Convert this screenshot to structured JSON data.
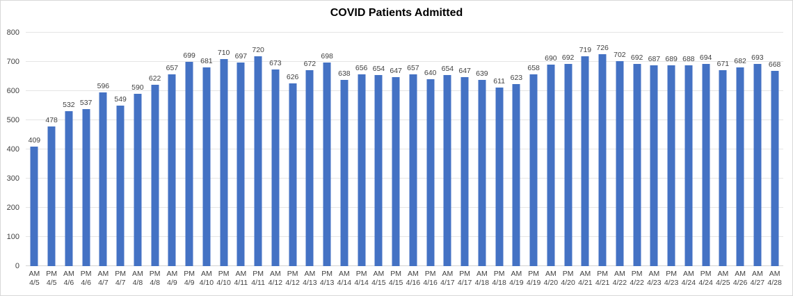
{
  "chart_data": {
    "type": "bar",
    "title": "COVID Patients Admitted",
    "xlabel": "",
    "ylabel": "",
    "ylim": [
      0,
      800
    ],
    "yticks": [
      0,
      100,
      200,
      300,
      400,
      500,
      600,
      700,
      800
    ],
    "grid": true,
    "legend": false,
    "bar_color": "#4472C4",
    "grid_color": "#E5E5E5",
    "axis_line_color": "#D2D2D2",
    "data_label_color": "#404040",
    "tick_label_color": "#404040",
    "categories": [
      "AM 4/5",
      "PM 4/5",
      "AM 4/6",
      "PM 4/6",
      "AM 4/7",
      "PM 4/7",
      "AM 4/8",
      "PM 4/8",
      "AM 4/9",
      "PM 4/9",
      "AM 4/10",
      "PM 4/10",
      "AM 4/11",
      "PM 4/11",
      "AM 4/12",
      "PM 4/12",
      "AM 4/13",
      "PM 4/13",
      "AM 4/14",
      "PM 4/14",
      "AM 4/15",
      "PM 4/15",
      "AM 4/16",
      "PM 4/16",
      "AM 4/17",
      "PM 4/17",
      "AM 4/18",
      "PM 4/18",
      "AM 4/19",
      "PM 4/19",
      "AM 4/20",
      "PM 4/20",
      "AM 4/21",
      "PM 4/21",
      "AM 4/22",
      "PM 4/22",
      "AM 4/23",
      "PM 4/23",
      "AM 4/24",
      "PM 4/24",
      "AM 4/25",
      "AM 4/26",
      "AM 4/27",
      "AM 4/28"
    ],
    "values": [
      409,
      478,
      532,
      537,
      596,
      549,
      590,
      622,
      657,
      699,
      681,
      710,
      697,
      720,
      673,
      626,
      672,
      698,
      638,
      656,
      654,
      647,
      657,
      640,
      654,
      647,
      639,
      611,
      623,
      658,
      690,
      692,
      719,
      726,
      702,
      692,
      687,
      689,
      688,
      694,
      671,
      682,
      693,
      668
    ]
  }
}
